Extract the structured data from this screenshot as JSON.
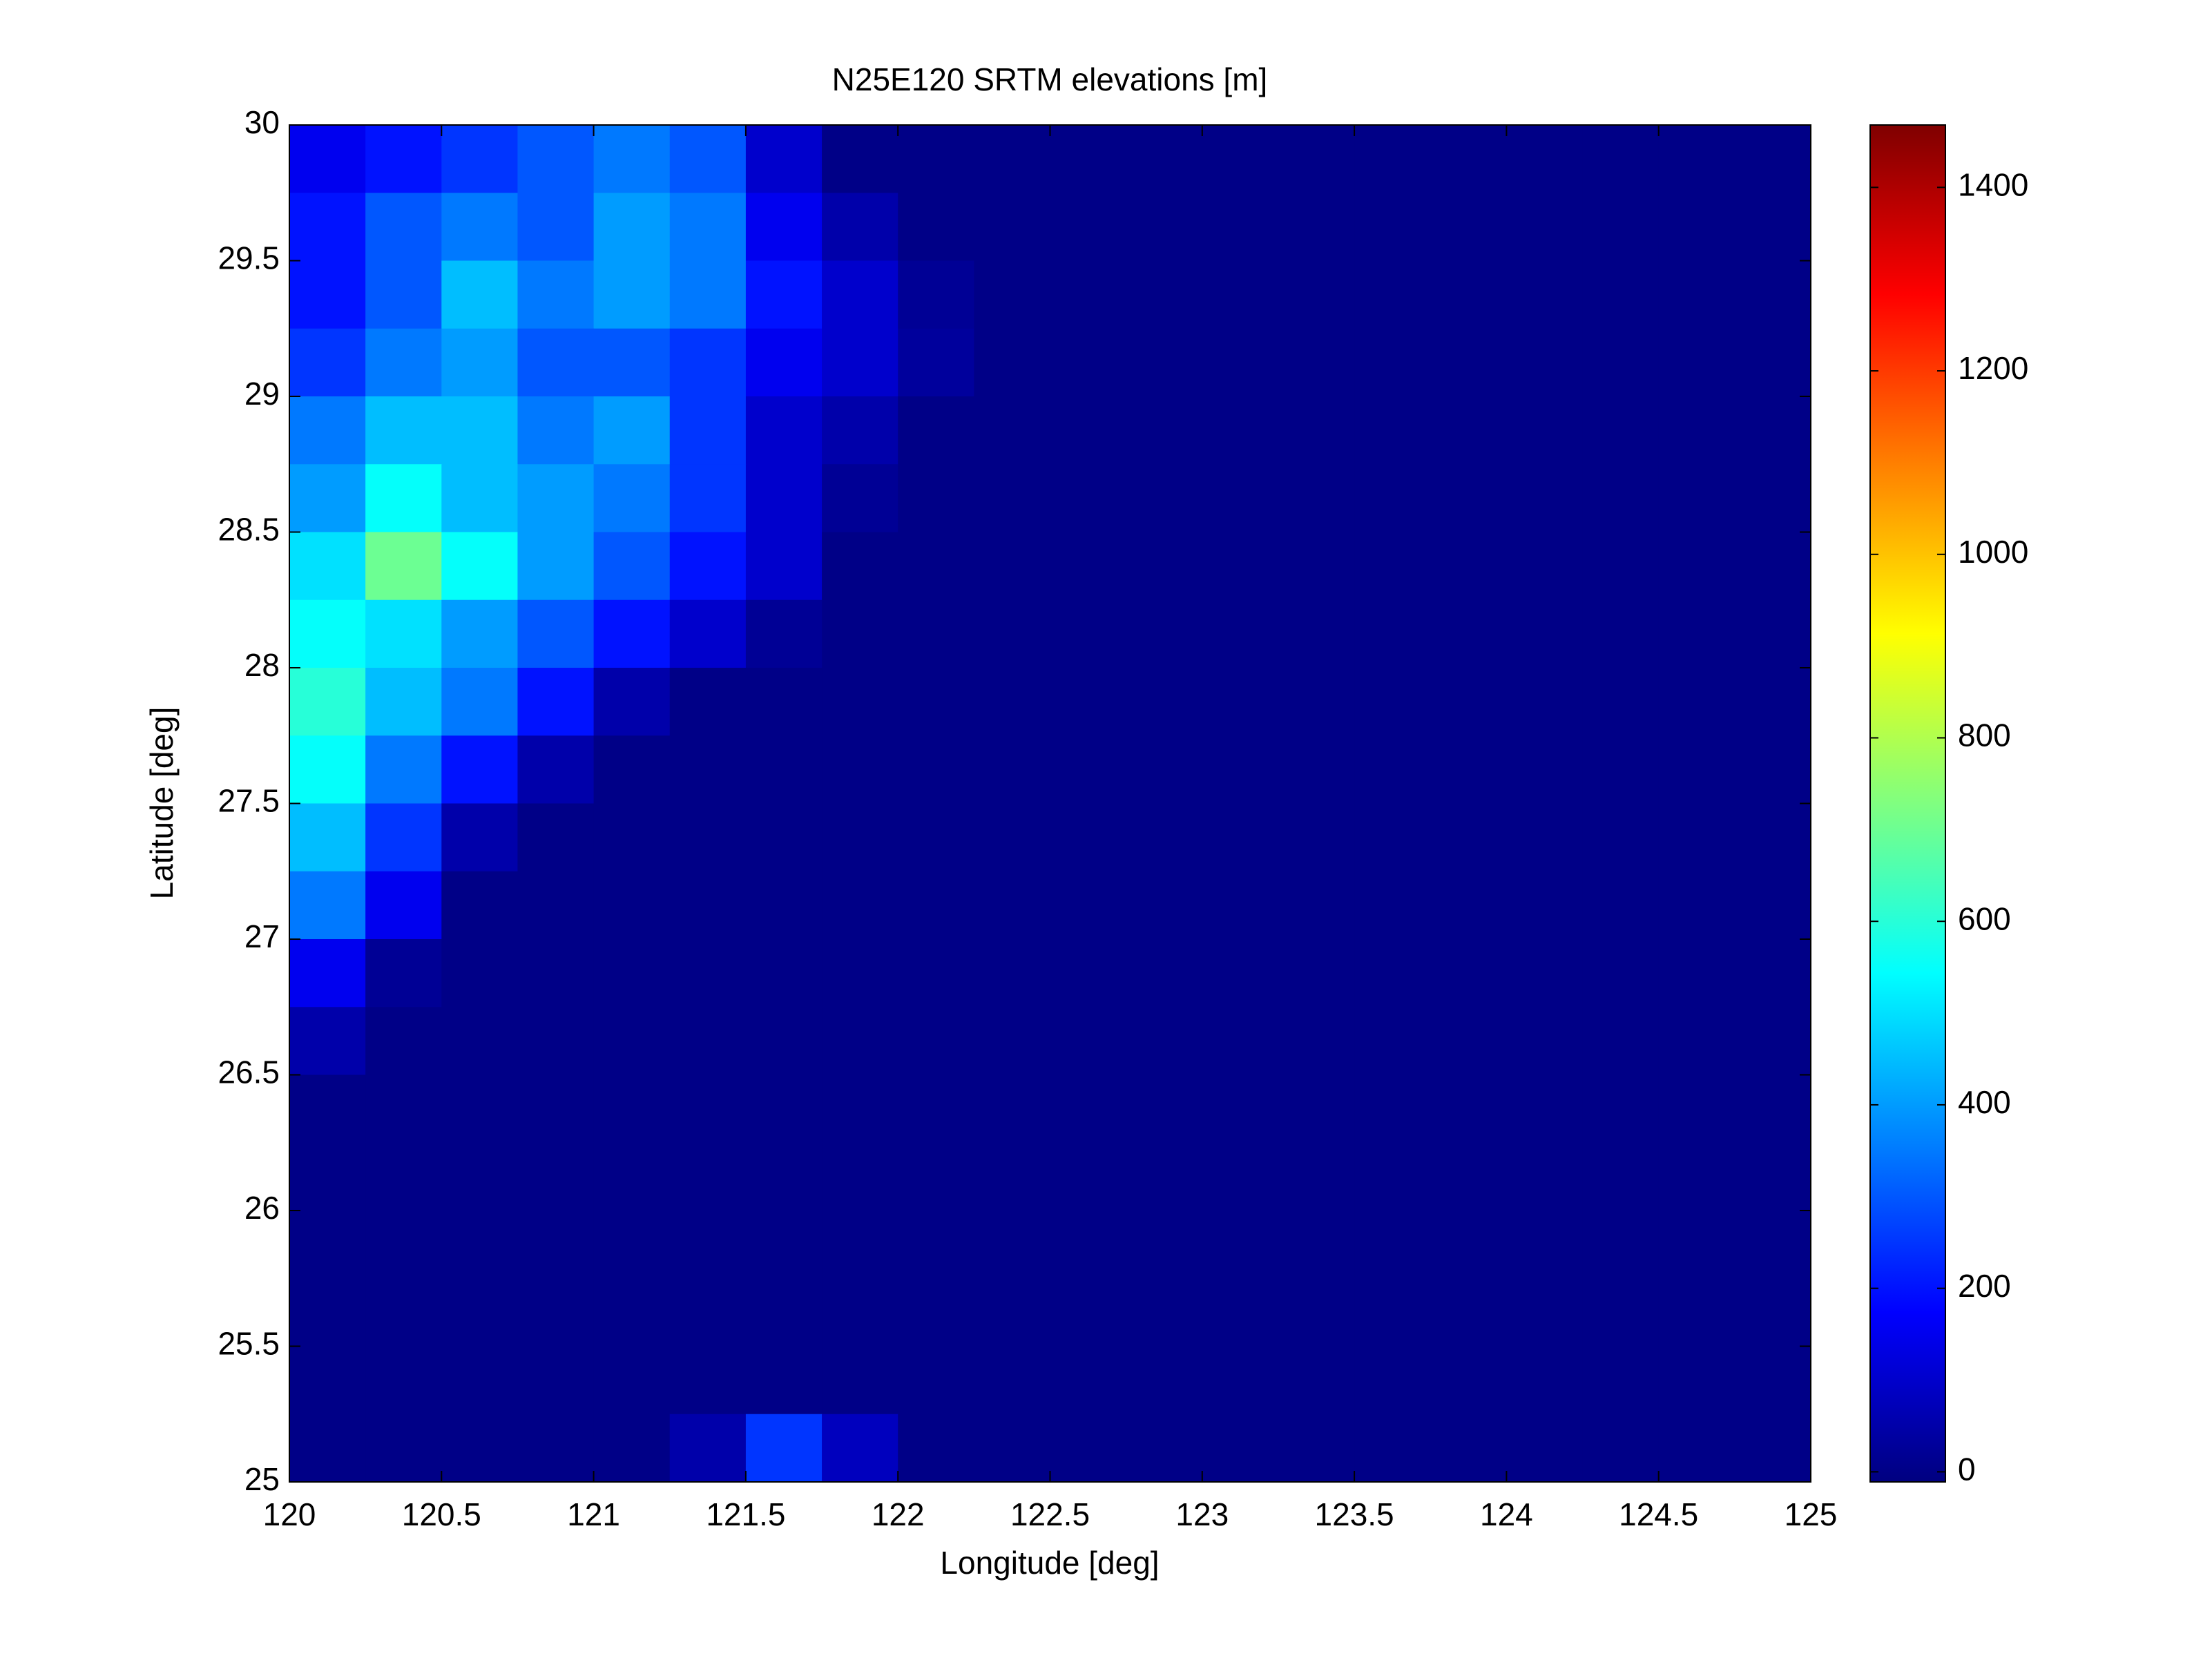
{
  "chart_data": {
    "type": "heatmap",
    "title": "N25E120 SRTM elevations [m]",
    "x_label": "Longitude [deg]",
    "y_label": "Latitude [deg]",
    "xlim": [
      120,
      125
    ],
    "ylim": [
      25,
      30
    ],
    "xticks": [
      120,
      120.5,
      121,
      121.5,
      122,
      122.5,
      123,
      123.5,
      124,
      124.5,
      125
    ],
    "yticks": [
      25,
      25.5,
      26,
      26.5,
      27,
      27.5,
      28,
      28.5,
      29,
      29.5,
      30
    ],
    "colormap": "jet",
    "clim": [
      -11,
      1468
    ],
    "cticks": [
      0,
      200,
      400,
      600,
      800,
      1000,
      1200,
      1400
    ],
    "z": [
      [
        150,
        200,
        250,
        300,
        350,
        300,
        100,
        0,
        0,
        0,
        0,
        0,
        0,
        0,
        0,
        0,
        0,
        0,
        0,
        0
      ],
      [
        200,
        300,
        350,
        300,
        400,
        350,
        150,
        50,
        0,
        0,
        0,
        0,
        0,
        0,
        0,
        0,
        0,
        0,
        0,
        0
      ],
      [
        200,
        300,
        450,
        350,
        400,
        350,
        200,
        100,
        20,
        0,
        0,
        0,
        0,
        0,
        0,
        0,
        0,
        0,
        0,
        0
      ],
      [
        250,
        350,
        400,
        300,
        300,
        250,
        150,
        100,
        30,
        0,
        0,
        0,
        0,
        0,
        0,
        0,
        0,
        0,
        0,
        0
      ],
      [
        350,
        450,
        450,
        350,
        400,
        250,
        100,
        50,
        0,
        0,
        0,
        0,
        0,
        0,
        0,
        0,
        0,
        0,
        0,
        0
      ],
      [
        400,
        550,
        450,
        400,
        350,
        250,
        100,
        20,
        0,
        0,
        0,
        0,
        0,
        0,
        0,
        0,
        0,
        0,
        0,
        0
      ],
      [
        500,
        700,
        550,
        400,
        300,
        200,
        100,
        0,
        0,
        0,
        0,
        0,
        0,
        0,
        0,
        0,
        0,
        0,
        0,
        0
      ],
      [
        550,
        500,
        400,
        300,
        200,
        100,
        20,
        0,
        0,
        0,
        0,
        0,
        0,
        0,
        0,
        0,
        0,
        0,
        0,
        0
      ],
      [
        600,
        450,
        350,
        200,
        50,
        0,
        0,
        0,
        0,
        0,
        0,
        0,
        0,
        0,
        0,
        0,
        0,
        0,
        0,
        0
      ],
      [
        550,
        350,
        200,
        50,
        0,
        0,
        0,
        0,
        0,
        0,
        0,
        0,
        0,
        0,
        0,
        0,
        0,
        0,
        0,
        0
      ],
      [
        450,
        250,
        50,
        0,
        0,
        0,
        0,
        0,
        0,
        0,
        0,
        0,
        0,
        0,
        0,
        0,
        0,
        0,
        0,
        0
      ],
      [
        350,
        150,
        0,
        0,
        0,
        0,
        0,
        0,
        0,
        0,
        0,
        0,
        0,
        0,
        0,
        0,
        0,
        0,
        0,
        0
      ],
      [
        150,
        20,
        0,
        0,
        0,
        0,
        0,
        0,
        0,
        0,
        0,
        0,
        0,
        0,
        0,
        0,
        0,
        0,
        0,
        0
      ],
      [
        50,
        0,
        0,
        0,
        0,
        0,
        0,
        0,
        0,
        0,
        0,
        0,
        0,
        0,
        0,
        0,
        0,
        0,
        0,
        0
      ],
      [
        0,
        0,
        0,
        0,
        0,
        0,
        0,
        0,
        0,
        0,
        0,
        0,
        0,
        0,
        0,
        0,
        0,
        0,
        0,
        0
      ],
      [
        0,
        0,
        0,
        0,
        0,
        0,
        0,
        0,
        0,
        0,
        0,
        0,
        0,
        0,
        0,
        0,
        0,
        0,
        0,
        0
      ],
      [
        0,
        0,
        0,
        0,
        0,
        0,
        0,
        0,
        0,
        0,
        0,
        0,
        0,
        0,
        0,
        0,
        0,
        0,
        0,
        0
      ],
      [
        0,
        0,
        0,
        0,
        0,
        0,
        0,
        0,
        0,
        0,
        0,
        0,
        0,
        0,
        0,
        0,
        0,
        0,
        0,
        0
      ],
      [
        0,
        0,
        0,
        0,
        0,
        0,
        0,
        0,
        0,
        0,
        0,
        0,
        0,
        0,
        0,
        0,
        0,
        0,
        0,
        0
      ],
      [
        0,
        0,
        0,
        0,
        0,
        50,
        250,
        80,
        0,
        0,
        0,
        0,
        0,
        0,
        0,
        0,
        0,
        0,
        0,
        0
      ]
    ]
  }
}
